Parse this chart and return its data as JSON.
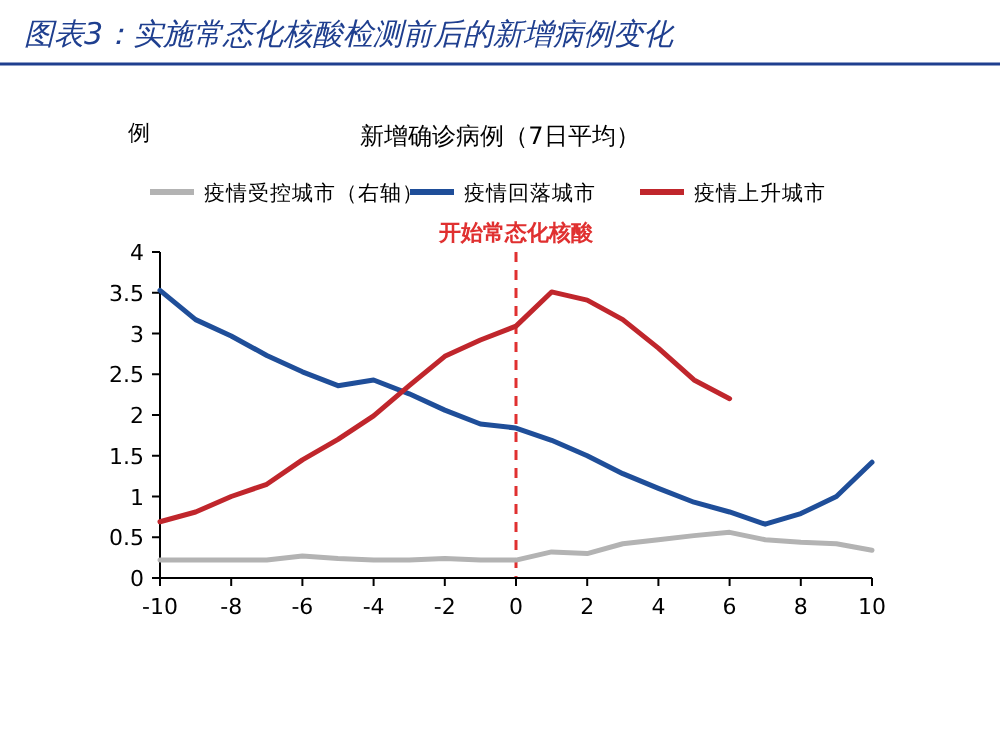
{
  "chart_data": {
    "type": "line",
    "title": "图表3：实施常态化核酸检测前后的新增病例变化",
    "subtitle": "新增确诊病例（7日平均）",
    "ylabel": "例",
    "x": [
      -10,
      -9,
      -8,
      -7,
      -6,
      -5,
      -4,
      -3,
      -2,
      -1,
      0,
      1,
      2,
      3,
      4,
      5,
      6,
      7,
      8,
      9,
      10
    ],
    "series": [
      {
        "name": "疫情受控城市（右轴）",
        "color": "#b3b3b3",
        "values": [
          0.22,
          0.22,
          0.22,
          0.22,
          0.27,
          0.24,
          0.22,
          0.22,
          0.24,
          0.22,
          0.22,
          0.32,
          0.3,
          0.42,
          0.47,
          0.52,
          0.56,
          0.47,
          0.44,
          0.42,
          0.34
        ]
      },
      {
        "name": "疫情回落城市",
        "color": "#1f4e99",
        "values": [
          3.53,
          3.17,
          2.97,
          2.73,
          2.53,
          2.36,
          2.43,
          2.26,
          2.06,
          1.89,
          1.84,
          1.69,
          1.5,
          1.28,
          1.1,
          0.93,
          0.81,
          0.66,
          0.79,
          1.0,
          1.42
        ]
      },
      {
        "name": "疫情上升城市",
        "color": "#c0262c",
        "values": [
          0.69,
          0.81,
          1.0,
          1.15,
          1.45,
          1.7,
          1.99,
          2.36,
          2.72,
          2.92,
          3.09,
          3.51,
          3.41,
          3.17,
          2.82,
          2.43,
          2.2,
          null,
          null,
          null,
          null
        ]
      }
    ],
    "xlim": [
      -10,
      10
    ],
    "xticks": [
      -10,
      -8,
      -6,
      -4,
      -2,
      0,
      2,
      4,
      6,
      8,
      10
    ],
    "ylim": [
      0,
      4
    ],
    "yticks": [
      0,
      0.5,
      1,
      1.5,
      2,
      2.5,
      3,
      3.5,
      4
    ],
    "ref_lines": [
      {
        "axis": "x",
        "value": 0,
        "label": "开始常态化核酸",
        "color": "#e03030",
        "line_style": "dashed"
      }
    ],
    "legend": "top",
    "grid": false
  }
}
